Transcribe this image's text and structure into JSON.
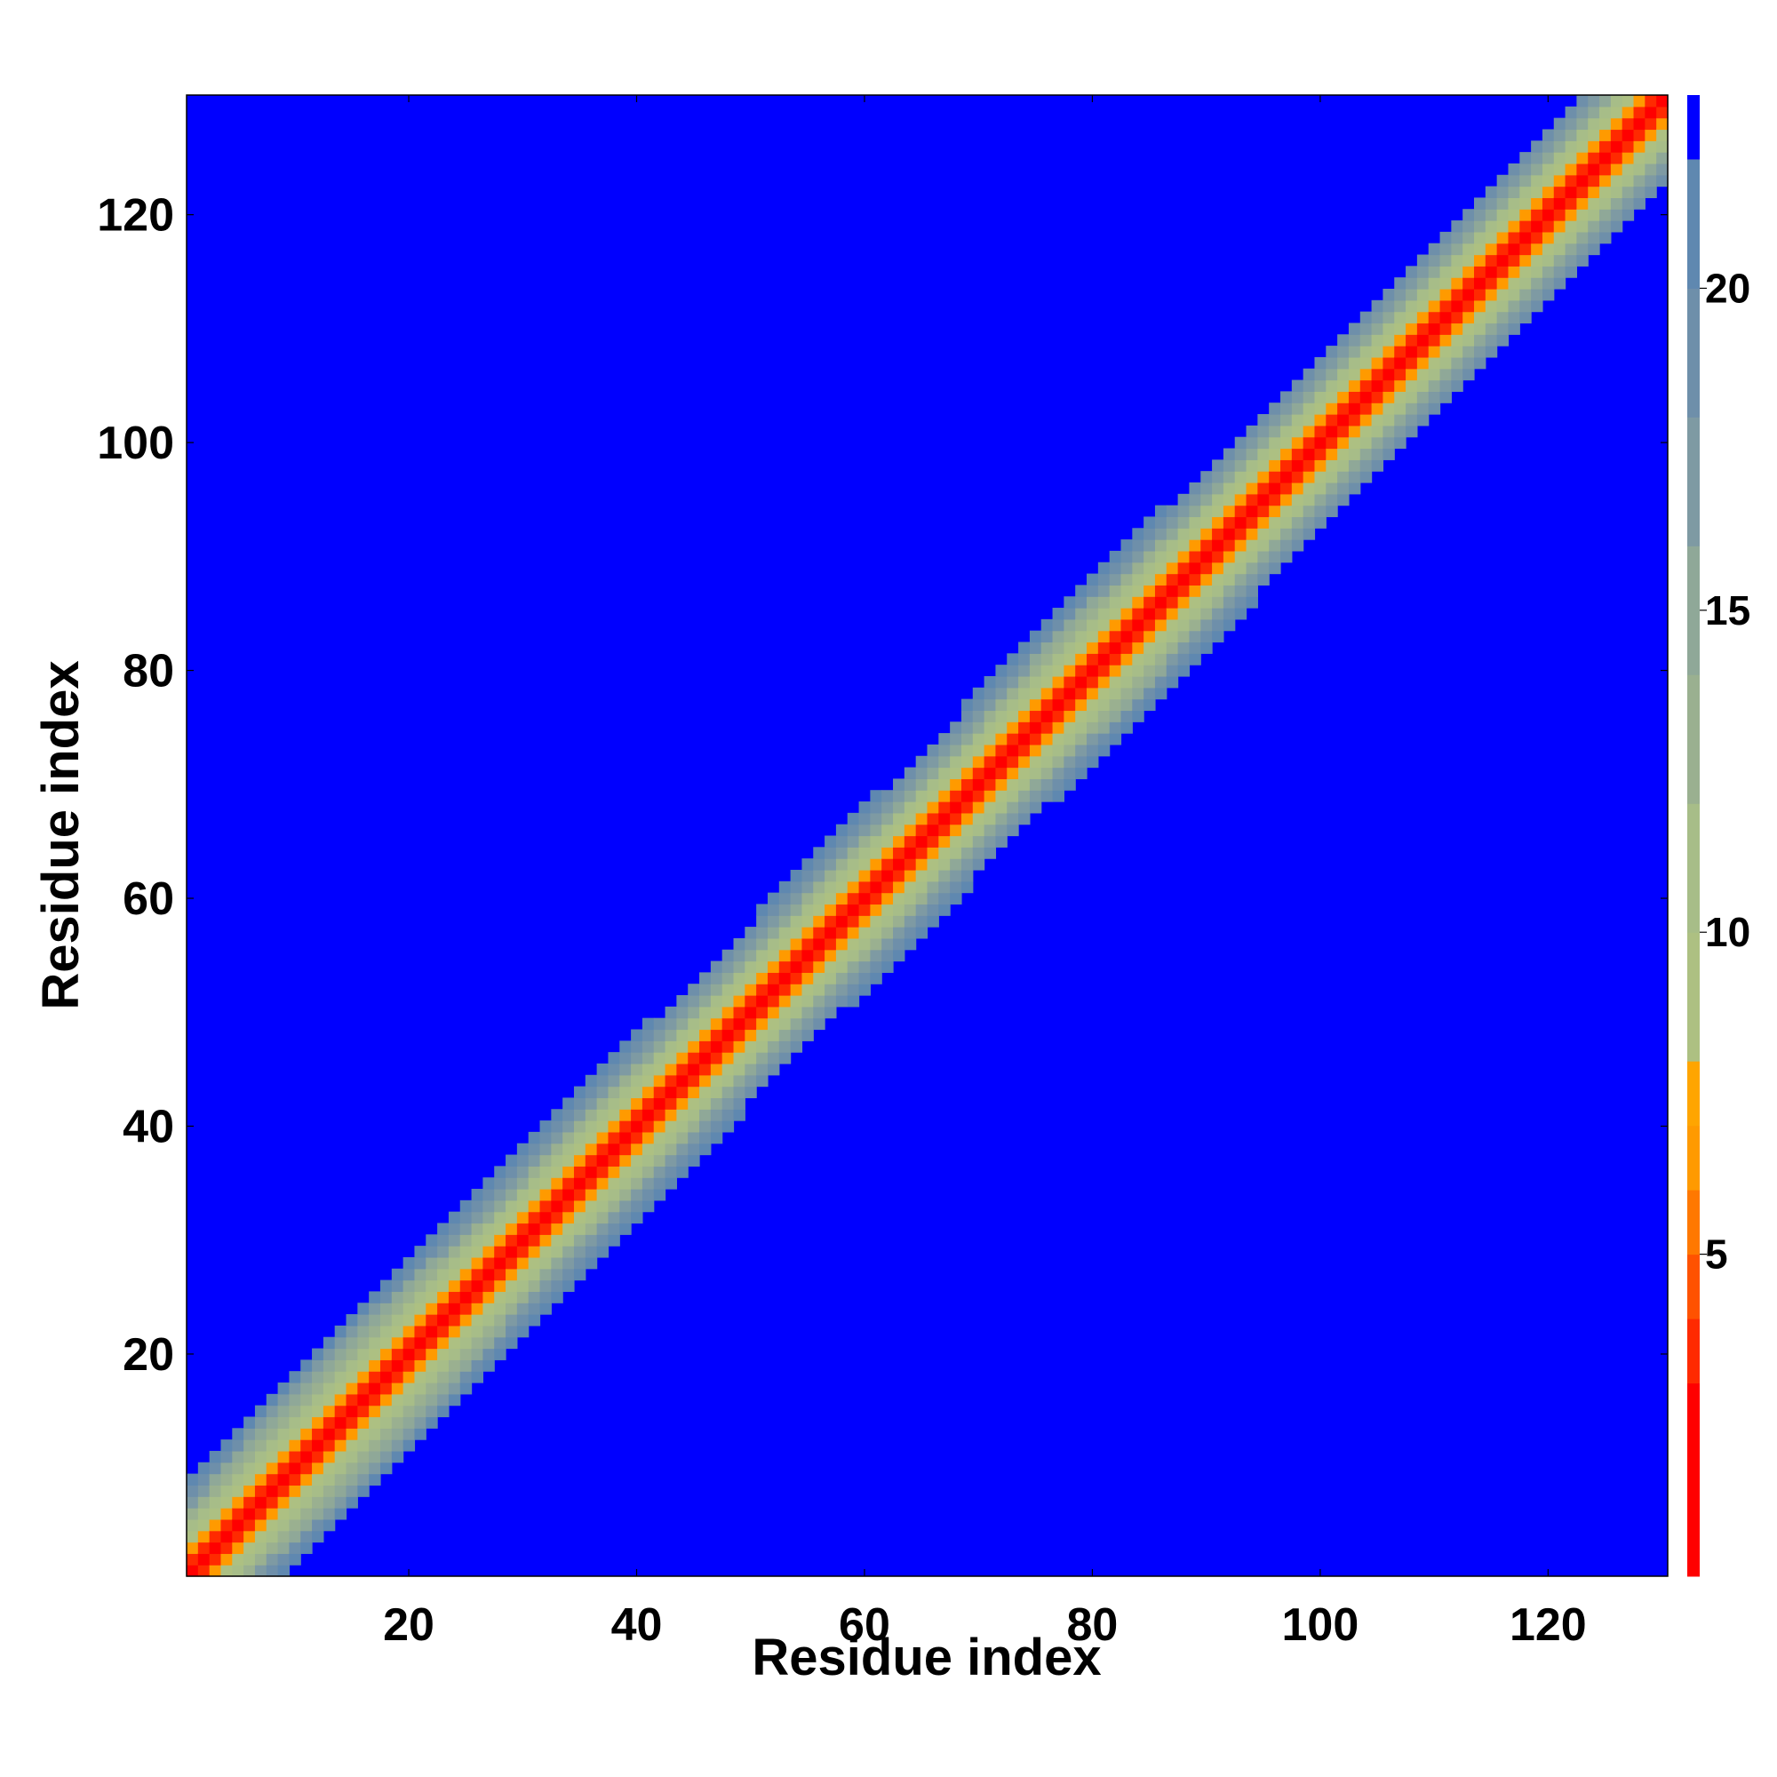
{
  "chart_data": {
    "type": "heatmap",
    "title": "",
    "xlabel": "Residue index",
    "ylabel": "Residue index",
    "n_residues": 130,
    "xlim": [
      1,
      130
    ],
    "ylim": [
      1,
      130
    ],
    "x_ticks": [
      20,
      40,
      60,
      80,
      100,
      120
    ],
    "y_ticks": [
      20,
      40,
      60,
      80,
      100,
      120
    ],
    "grid": false,
    "colorbar": {
      "position": "right",
      "range": [
        0,
        23
      ],
      "ticks": [
        5,
        10,
        15,
        20
      ],
      "saturated_above": 22,
      "saturated_color": "#0000ff",
      "levels": [
        {
          "max": 3,
          "color": "#ff0000"
        },
        {
          "max": 4,
          "color": "#ff2a00"
        },
        {
          "max": 5,
          "color": "#ff5200"
        },
        {
          "max": 6,
          "color": "#ff7800"
        },
        {
          "max": 7,
          "color": "#ff9a00"
        },
        {
          "max": 8,
          "color": "#ffa500"
        },
        {
          "max": 10,
          "color": "#adc082"
        },
        {
          "max": 12,
          "color": "#a7bd88"
        },
        {
          "max": 14,
          "color": "#9ab090"
        },
        {
          "max": 16,
          "color": "#8fa898"
        },
        {
          "max": 18,
          "color": "#7e9aa3"
        },
        {
          "max": 20,
          "color": "#6e8faa"
        },
        {
          "max": 22,
          "color": "#5f88b0"
        }
      ]
    },
    "band_profile": [
      {
        "residue": 1,
        "half_width": 8
      },
      {
        "residue": 10,
        "half_width": 12
      },
      {
        "residue": 20,
        "half_width": 12
      },
      {
        "residue": 30,
        "half_width": 8
      },
      {
        "residue": 40,
        "half_width": 9
      },
      {
        "residue": 50,
        "half_width": 7
      },
      {
        "residue": 60,
        "half_width": 9
      },
      {
        "residue": 70,
        "half_width": 7
      },
      {
        "residue": 80,
        "half_width": 11
      },
      {
        "residue": 90,
        "half_width": 8
      },
      {
        "residue": 100,
        "half_width": 7
      },
      {
        "residue": 110,
        "half_width": 7
      },
      {
        "residue": 120,
        "half_width": 7
      },
      {
        "residue": 130,
        "half_width": 7
      }
    ]
  }
}
